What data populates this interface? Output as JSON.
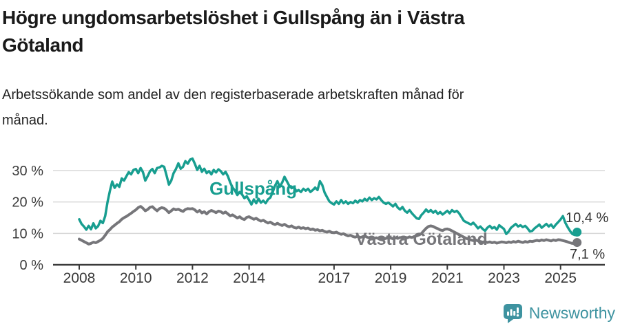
{
  "header": {
    "title_line1": "Högre ungdomsarbetslöshet i Gullspång än i Västra",
    "title_line2": "Götaland",
    "subtitle_line1": "Arbetssökande som andel av den registerbaserade arbetskraften månad för",
    "subtitle_line2": "månad."
  },
  "chart_data": {
    "type": "line",
    "x_start": "2008-01",
    "x_end": "2025-08",
    "points_per_year": 12,
    "grid": true,
    "ylim": [
      0,
      34
    ],
    "y_ticks": [
      {
        "value": 0,
        "label": "0 %"
      },
      {
        "value": 10,
        "label": "10 %"
      },
      {
        "value": 20,
        "label": "20 %"
      },
      {
        "value": 30,
        "label": "30 %"
      }
    ],
    "x_ticks": [
      {
        "year": 2008,
        "label": "2008"
      },
      {
        "year": 2010,
        "label": "2010"
      },
      {
        "year": 2012,
        "label": "2012"
      },
      {
        "year": 2014,
        "label": "2014"
      },
      {
        "year": 2017,
        "label": "2017"
      },
      {
        "year": 2019,
        "label": "2019"
      },
      {
        "year": 2021,
        "label": "2021"
      },
      {
        "year": 2023,
        "label": "2023"
      },
      {
        "year": 2025,
        "label": "2025"
      }
    ],
    "series": [
      {
        "name": "Gullspång",
        "color": "#189E90",
        "line_width": 3.5,
        "label_pos": {
          "x": 304,
          "y": 283
        },
        "end_label": "10,4 %",
        "end_label_pos": {
          "x": 821,
          "y": 323
        },
        "values": [
          14.5,
          13.0,
          12.2,
          11.2,
          12.4,
          11.3,
          13.2,
          11.6,
          12.3,
          14.0,
          13.3,
          15.5,
          20.0,
          23.5,
          26.5,
          24.5,
          25.6,
          24.8,
          27.5,
          26.8,
          28.2,
          29.5,
          28.8,
          30.2,
          30.5,
          29.2,
          30.8,
          29.5,
          26.8,
          28.2,
          29.8,
          30.5,
          29.2,
          30.8,
          31.0,
          31.5,
          31.2,
          28.5,
          25.5,
          26.8,
          29.2,
          30.5,
          32.3,
          30.6,
          31.2,
          33.0,
          32.2,
          33.5,
          33.8,
          32.2,
          30.2,
          31.5,
          29.6,
          30.6,
          29.2,
          29.8,
          28.8,
          30.2,
          29.4,
          30.4,
          29.8,
          28.8,
          29.6,
          28.2,
          26.2,
          24.6,
          23.6,
          22.2,
          23.2,
          22.4,
          21.2,
          21.8,
          20.6,
          19.2,
          20.8,
          19.6,
          21.0,
          19.8,
          20.4,
          19.6,
          20.8,
          21.4,
          23.2,
          25.2,
          26.6,
          24.8,
          26.2,
          28.0,
          26.6,
          25.2,
          24.4,
          24.8,
          23.4,
          23.8,
          23.2,
          24.2,
          23.6,
          24.2,
          23.2,
          23.8,
          24.6,
          23.8,
          26.6,
          25.4,
          23.0,
          21.6,
          20.2,
          19.6,
          19.2,
          20.2,
          19.4,
          20.6,
          19.6,
          20.2,
          19.4,
          20.0,
          19.6,
          20.4,
          19.8,
          20.6,
          20.2,
          21.0,
          20.4,
          21.4,
          20.6,
          21.2,
          20.8,
          21.6,
          20.6,
          19.8,
          19.4,
          19.8,
          19.2,
          18.6,
          19.4,
          18.2,
          17.6,
          18.4,
          17.2,
          16.6,
          17.4,
          16.4,
          15.6,
          14.8,
          14.6,
          15.8,
          16.6,
          17.6,
          16.8,
          17.4,
          16.6,
          17.2,
          16.2,
          16.8,
          16.0,
          16.6,
          17.2,
          16.4,
          17.4,
          16.8,
          17.2,
          16.4,
          15.2,
          14.0,
          13.6,
          13.2,
          12.8,
          13.4,
          12.6,
          11.6,
          12.2,
          11.4,
          10.8,
          11.8,
          12.4,
          11.6,
          12.0,
          11.2,
          12.6,
          12.0,
          11.4,
          9.8,
          10.6,
          11.8,
          12.4,
          13.0,
          12.2,
          12.6,
          12.0,
          12.4,
          11.6,
          10.6,
          10.8,
          11.6,
          12.2,
          12.8,
          11.8,
          12.4,
          13.0,
          12.2,
          12.8,
          11.8,
          12.8,
          13.6,
          14.4,
          15.5,
          13.4,
          12.0,
          10.8,
          9.8,
          9.5,
          10.4
        ]
      },
      {
        "name": "Västra Götaland",
        "color": "#76767A",
        "line_width": 4,
        "label_pos": {
          "x": 516,
          "y": 356
        },
        "end_label": "7,1 %",
        "end_label_pos": {
          "x": 827,
          "y": 376
        },
        "values": [
          8.2,
          7.8,
          7.4,
          7.0,
          6.6,
          6.8,
          7.2,
          7.0,
          7.4,
          7.8,
          8.4,
          9.4,
          10.5,
          11.2,
          12.0,
          12.6,
          13.2,
          13.7,
          14.5,
          15.0,
          15.4,
          15.9,
          16.4,
          17.0,
          17.5,
          18.2,
          18.6,
          18.0,
          17.2,
          17.6,
          18.3,
          18.5,
          17.8,
          17.2,
          17.9,
          18.2,
          18.0,
          17.4,
          16.6,
          17.2,
          17.8,
          17.5,
          17.7,
          17.3,
          17.0,
          17.6,
          17.9,
          17.8,
          17.9,
          17.5,
          16.8,
          17.3,
          16.5,
          16.9,
          16.2,
          16.9,
          17.3,
          17.0,
          16.6,
          17.1,
          16.9,
          16.4,
          16.8,
          16.2,
          15.6,
          15.9,
          15.4,
          14.9,
          15.3,
          14.7,
          14.4,
          15.1,
          15.3,
          14.9,
          14.5,
          14.8,
          14.3,
          13.9,
          14.2,
          13.7,
          13.3,
          13.6,
          13.1,
          12.8,
          13.2,
          12.8,
          12.5,
          12.9,
          12.4,
          12.1,
          12.4,
          11.9,
          11.7,
          12.0,
          11.6,
          11.8,
          11.5,
          11.7,
          11.2,
          11.4,
          11.0,
          11.2,
          10.8,
          11.0,
          10.6,
          10.4,
          10.7,
          10.3,
          10.2,
          10.4,
          10.0,
          9.7,
          9.9,
          9.5,
          9.2,
          9.4,
          9.0,
          8.8,
          9.1,
          8.7,
          8.9,
          9.2,
          8.8,
          8.5,
          8.7,
          8.4,
          8.6,
          8.3,
          8.5,
          8.2,
          8.4,
          8.6,
          8.5,
          8.3,
          8.6,
          8.4,
          8.7,
          8.5,
          8.8,
          8.6,
          8.9,
          8.7,
          9.0,
          9.2,
          9.5,
          9.9,
          10.8,
          11.6,
          12.2,
          12.4,
          12.2,
          11.8,
          11.5,
          11.1,
          10.9,
          11.3,
          11.4,
          11.2,
          10.8,
          10.4,
          10.0,
          9.6,
          9.2,
          8.8,
          8.4,
          8.2,
          7.9,
          7.7,
          7.9,
          7.6,
          7.4,
          7.2,
          7.4,
          7.1,
          7.3,
          7.0,
          7.2,
          6.9,
          7.1,
          7.3,
          7.2,
          7.0,
          7.3,
          7.1,
          7.4,
          7.2,
          7.5,
          7.3,
          7.1,
          7.4,
          7.2,
          7.5,
          7.4,
          7.6,
          7.8,
          7.6,
          7.9,
          7.7,
          8.0,
          7.8,
          7.6,
          7.9,
          7.7,
          8.0,
          7.9,
          7.7,
          7.5,
          7.3,
          7.0,
          6.8,
          6.9,
          7.1
        ]
      }
    ],
    "colors": {
      "grid": "#D8D8D8",
      "axis": "#3A3A3A",
      "tick_text": "#3A3A3A",
      "annotation_text": "#333333"
    }
  },
  "footer": {
    "brand": "Newsworthy",
    "brand_color": "#3E93A0"
  }
}
